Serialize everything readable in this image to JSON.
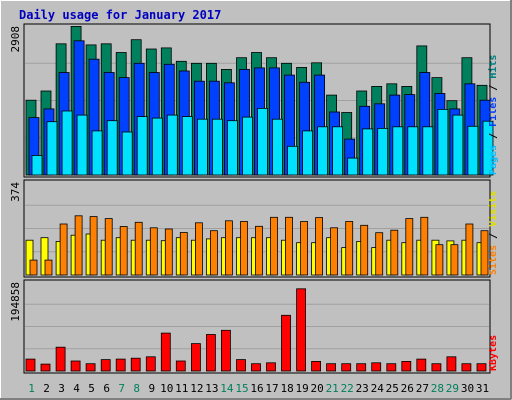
{
  "chart_data": {
    "type": "bar",
    "title": "Daily usage for January 2017",
    "days": [
      "1",
      "2",
      "3",
      "4",
      "5",
      "6",
      "7",
      "8",
      "9",
      "10",
      "11",
      "12",
      "13",
      "14",
      "15",
      "16",
      "17",
      "18",
      "19",
      "20",
      "21",
      "22",
      "23",
      "24",
      "25",
      "26",
      "27",
      "28",
      "29",
      "30",
      "31"
    ],
    "weekend_days": [
      "1",
      "7",
      "8",
      "14",
      "15",
      "21",
      "22",
      "28",
      "29"
    ],
    "panels": [
      {
        "id": "hits-files-pages",
        "max_label": "2908",
        "ymax": 2908,
        "legend": [
          "Pages",
          "Files",
          "Hits"
        ],
        "series": [
          {
            "name": "Hits",
            "color": "#00805c",
            "values": [
              1460,
              1640,
              2560,
              2900,
              2540,
              2560,
              2390,
              2640,
              2460,
              2480,
              2220,
              2180,
              2180,
              2060,
              2290,
              2390,
              2290,
              2180,
              2100,
              2190,
              1560,
              1220,
              1640,
              1730,
              1780,
              1730,
              2520,
              1900,
              1450,
              2290,
              1750
            ]
          },
          {
            "name": "Files",
            "color": "#0040ff",
            "values": [
              1120,
              1290,
              2000,
              2620,
              2260,
              2000,
              1900,
              2180,
              2000,
              2160,
              2030,
              1830,
              1830,
              1800,
              2060,
              2090,
              2090,
              1950,
              1810,
              1950,
              1230,
              700,
              1340,
              1390,
              1560,
              1570,
              2000,
              1590,
              1290,
              1780,
              1460
            ]
          },
          {
            "name": "Pages",
            "color": "#00e0ff",
            "values": [
              380,
              1040,
              1250,
              1170,
              860,
              1060,
              840,
              1140,
              1110,
              1170,
              1140,
              1090,
              1090,
              1060,
              1130,
              1300,
              1090,
              560,
              860,
              940,
              940,
              330,
              900,
              910,
              940,
              940,
              940,
              1280,
              1170,
              950,
              1050
            ]
          }
        ]
      },
      {
        "id": "visits-sites",
        "max_label": "374",
        "ymax": 374,
        "legend": [
          "Sites",
          "Visits"
        ],
        "series": [
          {
            "name": "Visits",
            "color": "#ffff00",
            "values": [
              140,
              150,
              135,
              160,
              165,
              140,
              150,
              140,
              140,
              138,
              150,
              140,
              145,
              150,
              150,
              150,
              150,
              140,
              130,
              130,
              150,
              110,
              135,
              110,
              140,
              130,
              140,
              140,
              137,
              140,
              130
            ]
          },
          {
            "name": "Sites",
            "color": "#ff8000",
            "values": [
              60,
              60,
              205,
              238,
              235,
              227,
              195,
              212,
              190,
              185,
              171,
              210,
              178,
              218,
              215,
              196,
              232,
              232,
              215,
              231,
              190,
              215,
              200,
              170,
              180,
              227,
              232,
              122,
              122,
              205,
              178
            ]
          }
        ]
      },
      {
        "id": "kbytes",
        "max_label": "194858",
        "ymax": 194858,
        "legend": [
          "KBytes"
        ],
        "series": [
          {
            "name": "KBytes",
            "color": "#ff0000",
            "values": [
              26000,
              15000,
              52000,
              22000,
              16000,
              25000,
              26000,
              28000,
              31000,
              83000,
              22000,
              60000,
              80000,
              89000,
              25000,
              16000,
              18000,
              122000,
              180000,
              21000,
              16000,
              16000,
              16000,
              18000,
              16000,
              21000,
              26000,
              16000,
              31000,
              16000,
              16000
            ]
          }
        ]
      }
    ]
  }
}
